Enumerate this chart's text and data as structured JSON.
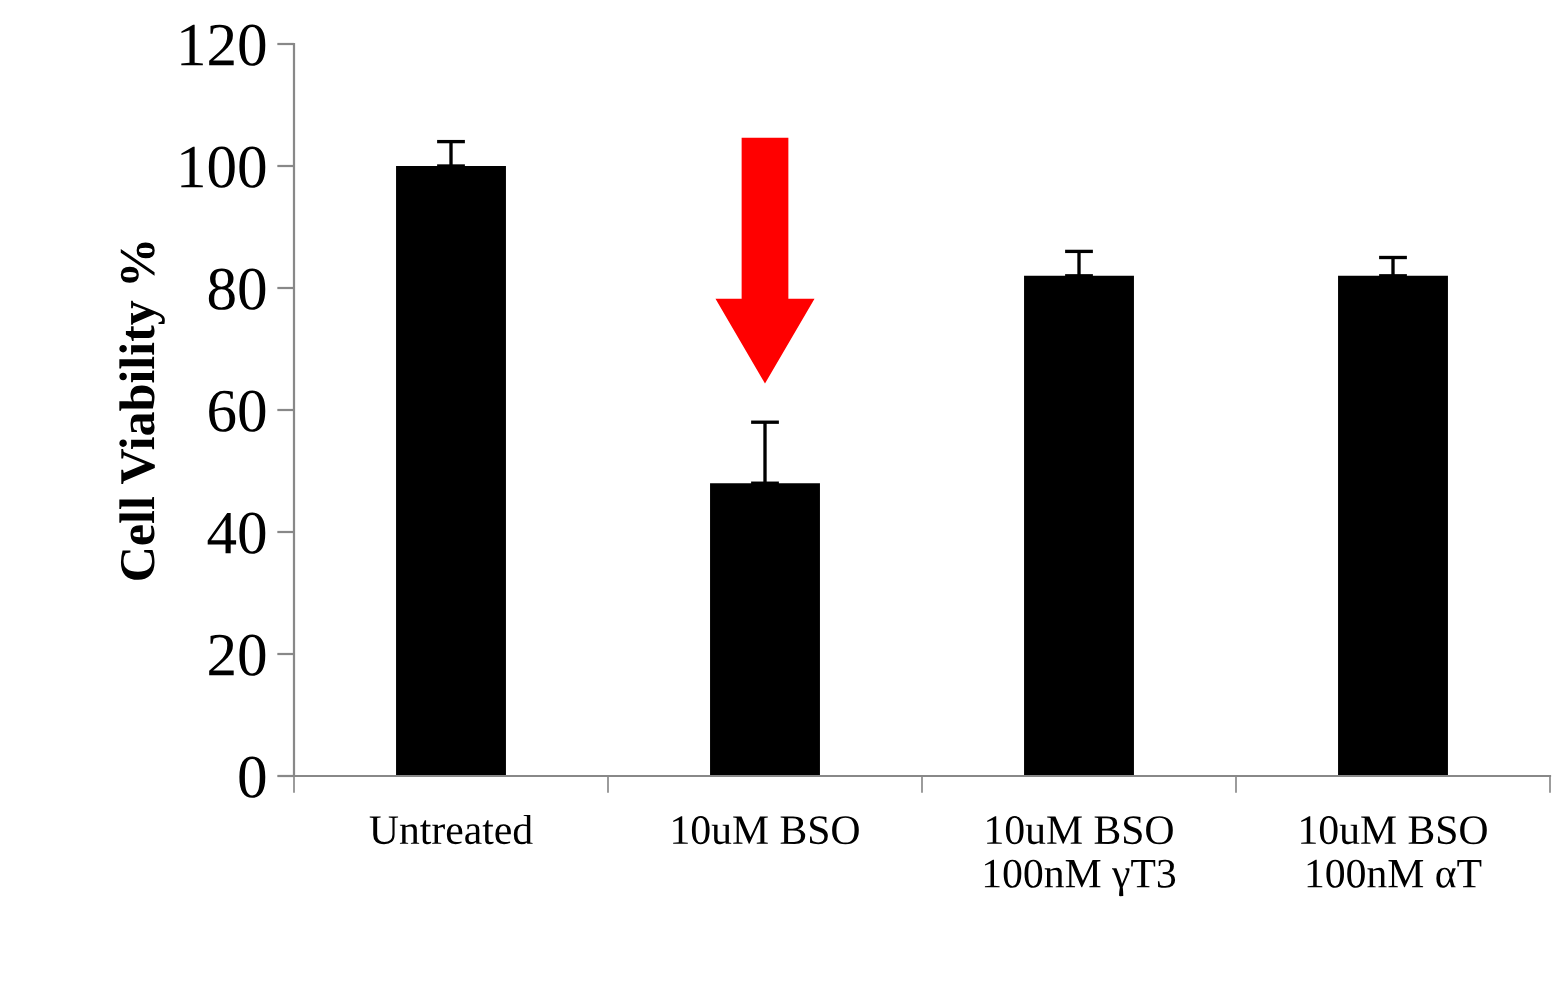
{
  "chart_data": {
    "type": "bar",
    "ylabel": "Cell Viability %",
    "categories": [
      "Untreated",
      "10uM BSO",
      "10uM BSO\n100nM γT3",
      "10uM BSO\n100nM αT"
    ],
    "values": [
      100,
      48,
      82,
      82
    ],
    "errors": [
      4,
      10,
      4,
      3
    ],
    "color": "#000000",
    "ylim": [
      0,
      120
    ],
    "yticks": [
      0,
      20,
      40,
      60,
      80,
      100,
      120
    ],
    "grid": false,
    "legend": false
  }
}
